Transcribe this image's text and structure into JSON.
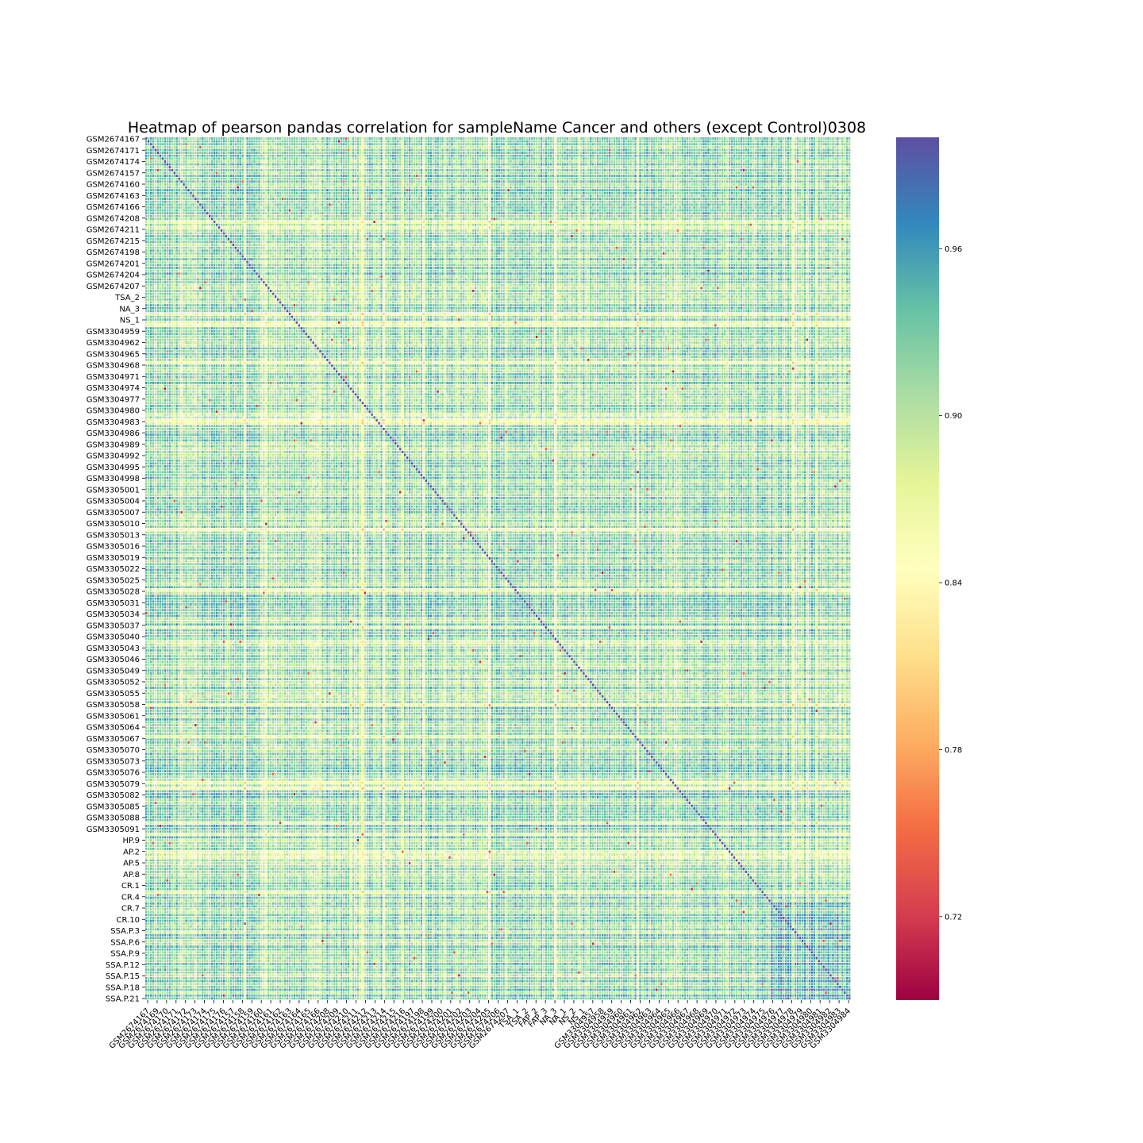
{
  "chart_data": {
    "type": "heatmap",
    "title": "Heatmap of pearson pandas correlation for sampleName Cancer and others (except Control)0308",
    "xlabel": "",
    "ylabel": "",
    "colormap": "Spectral",
    "vmin": 0.69,
    "vmax": 1.0,
    "colorbar_ticks": [
      "0.72",
      "0.78",
      "0.84",
      "0.90",
      "0.96"
    ],
    "colorbar_tick_values": [
      0.72,
      0.78,
      0.84,
      0.9,
      0.96
    ],
    "y_tick_labels": [
      "GSM2674167",
      "GSM2674171",
      "GSM2674174",
      "GSM2674157",
      "GSM2674160",
      "GSM2674163",
      "GSM2674166",
      "GSM2674208",
      "GSM2674211",
      "GSM2674215",
      "GSM2674198",
      "GSM2674201",
      "GSM2674204",
      "GSM2674207",
      "TSA_2",
      "NA_3",
      "NS_1",
      "GSM3304959",
      "GSM3304962",
      "GSM3304965",
      "GSM3304968",
      "GSM3304971",
      "GSM3304974",
      "GSM3304977",
      "GSM3304980",
      "GSM3304983",
      "GSM3304986",
      "GSM3304989",
      "GSM3304992",
      "GSM3304995",
      "GSM3304998",
      "GSM3305001",
      "GSM3305004",
      "GSM3305007",
      "GSM3305010",
      "GSM3305013",
      "GSM3305016",
      "GSM3305019",
      "GSM3305022",
      "GSM3305025",
      "GSM3305028",
      "GSM3305031",
      "GSM3305034",
      "GSM3305037",
      "GSM3305040",
      "GSM3305043",
      "GSM3305046",
      "GSM3305049",
      "GSM3305052",
      "GSM3305055",
      "GSM3305058",
      "GSM3305061",
      "GSM3305064",
      "GSM3305067",
      "GSM3305070",
      "GSM3305073",
      "GSM3305076",
      "GSM3305079",
      "GSM3305082",
      "GSM3305085",
      "GSM3305088",
      "GSM3305091",
      "HP.9",
      "AP.2",
      "AP.5",
      "AP.8",
      "CR.1",
      "CR.4",
      "CR.7",
      "CR.10",
      "SSA.P.3",
      "SSA.P.6",
      "SSA.P.9",
      "SSA.P.12",
      "SSA.P.15",
      "SSA.P.18",
      "SSA.P.21"
    ],
    "x_tick_labels": [
      "GSM2674167",
      "GSM2674169",
      "GSM2674170",
      "GSM2674171",
      "GSM2674172",
      "GSM2674173",
      "GSM2674174",
      "GSM2674175",
      "GSM2674176",
      "GSM2674157",
      "GSM2674158",
      "GSM2674159",
      "GSM2674160",
      "GSM2674161",
      "GSM2674162",
      "GSM2674163",
      "GSM2674164",
      "GSM2674165",
      "GSM2674166",
      "GSM2674208",
      "GSM2674209",
      "GSM2674210",
      "GSM2674211",
      "GSM2674212",
      "GSM2674213",
      "GSM2674214",
      "GSM2674215",
      "GSM2674216",
      "GSM2674197",
      "GSM2674198",
      "GSM2674199",
      "GSM2674200",
      "GSM2674201",
      "GSM2674202",
      "GSM2674203",
      "GSM2674204",
      "GSM2674205",
      "GSM2674206",
      "GSM2674207",
      "TSA_1",
      "TSA_2",
      "FAP_2",
      "FAP_3",
      "NA_3",
      "NA_1",
      "NS_2",
      "NS_1",
      "GSM3304957",
      "GSM3304958",
      "GSM3304959",
      "GSM3304960",
      "GSM3304961",
      "GSM3304962",
      "GSM3304963",
      "GSM3304964",
      "GSM3304965",
      "GSM3304966",
      "GSM3304967",
      "GSM3304968",
      "GSM3304969",
      "GSM3304970",
      "GSM3304971",
      "GSM3304972",
      "GSM3304973",
      "GSM3304974",
      "GSM3304975",
      "GSM3304976",
      "GSM3304977",
      "GSM3304978",
      "GSM3304979",
      "GSM3304980",
      "GSM3304981",
      "GSM3304982",
      "GSM3304983",
      "GSM3304984"
    ]
  }
}
